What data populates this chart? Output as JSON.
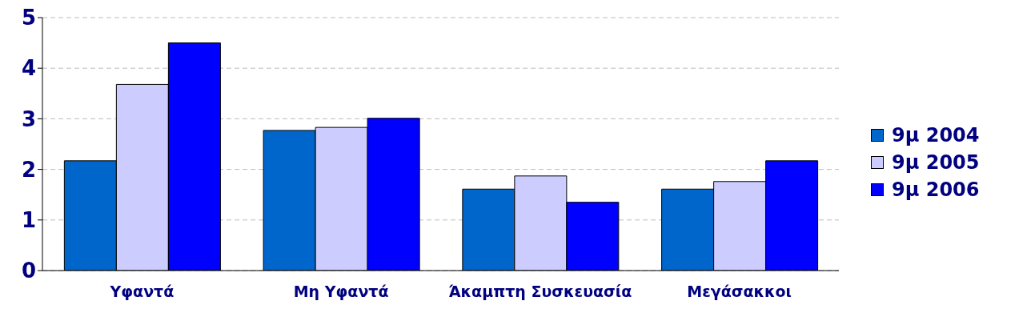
{
  "chart_data": {
    "type": "bar",
    "categories": [
      "Υφαντά",
      "Μη Υφαντά",
      "Άκαμπτη Συσκευασία",
      "Μεγάσακκοι"
    ],
    "series": [
      {
        "name": "9μ 2004",
        "color": "#0066cc",
        "values": [
          2.17,
          2.77,
          1.61,
          1.61
        ]
      },
      {
        "name": "9μ 2005",
        "color": "#ccccff",
        "values": [
          3.68,
          2.83,
          1.87,
          1.76
        ]
      },
      {
        "name": "9μ 2006",
        "color": "#0000ff",
        "values": [
          4.5,
          3.01,
          1.35,
          2.17
        ]
      }
    ],
    "ylim": [
      0,
      5
    ],
    "yticks": [
      0,
      1,
      2,
      3,
      4,
      5
    ],
    "grid": "y",
    "legend": "right"
  }
}
